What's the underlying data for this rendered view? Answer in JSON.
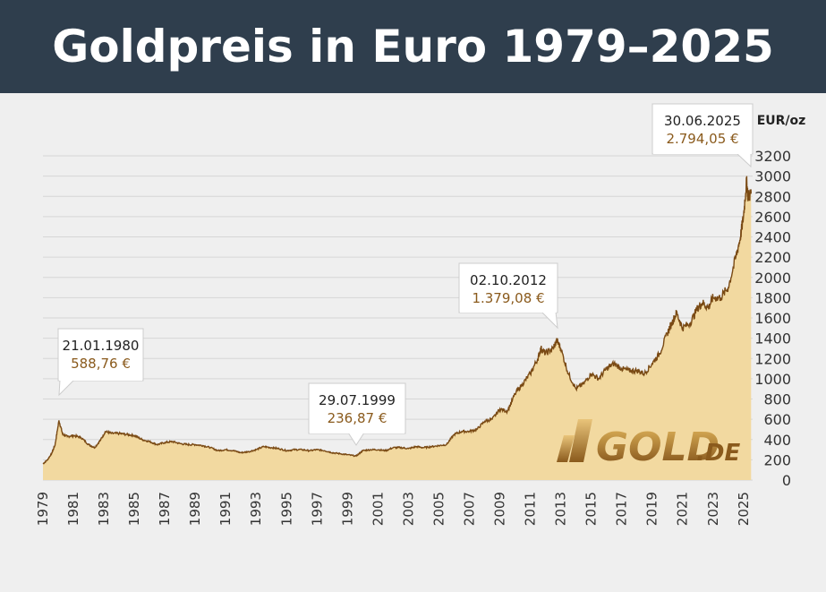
{
  "header": {
    "title": "Goldpreis in Euro 1979–2025"
  },
  "logo": {
    "name": "GOLD",
    "suffix": ".DE"
  },
  "chart_data": {
    "type": "area",
    "title": "Goldpreis in Euro 1979–2025",
    "ylabel": "EUR/oz",
    "xlabel": "",
    "ylim": [
      0,
      3200
    ],
    "xlim": [
      1979,
      2025.6
    ],
    "y_ticks": [
      0,
      200,
      400,
      600,
      800,
      1000,
      1200,
      1400,
      1600,
      1800,
      2000,
      2200,
      2400,
      2600,
      2800,
      3000,
      3200
    ],
    "x_ticks": [
      1979,
      1981,
      1983,
      1985,
      1987,
      1989,
      1991,
      1993,
      1995,
      1997,
      1999,
      2001,
      2003,
      2005,
      2007,
      2009,
      2011,
      2013,
      2015,
      2017,
      2019,
      2021,
      2023,
      2025
    ],
    "grid": true,
    "fill_color": "#f2d9a0",
    "line_color": "#7a4a14",
    "series": [
      {
        "name": "",
        "x": [
          1979.0,
          1979.3,
          1979.6,
          1979.8,
          1980.05,
          1980.3,
          1980.6,
          1981.0,
          1981.5,
          1982.0,
          1982.4,
          1982.8,
          1983.1,
          1983.5,
          1984.0,
          1984.5,
          1985.0,
          1985.5,
          1986.0,
          1986.5,
          1987.0,
          1987.5,
          1988.0,
          1988.5,
          1989.0,
          1989.5,
          1990.0,
          1990.5,
          1991.0,
          1991.5,
          1992.0,
          1992.5,
          1993.0,
          1993.5,
          1994.0,
          1994.5,
          1995.0,
          1995.5,
          1996.0,
          1996.5,
          1997.0,
          1997.5,
          1998.0,
          1998.5,
          1999.0,
          1999.57,
          2000.0,
          2000.5,
          2001.0,
          2001.5,
          2002.0,
          2002.5,
          2003.0,
          2003.5,
          2004.0,
          2004.5,
          2005.0,
          2005.5,
          2006.0,
          2006.5,
          2007.0,
          2007.5,
          2008.0,
          2008.5,
          2009.0,
          2009.5,
          2010.0,
          2010.5,
          2011.0,
          2011.5,
          2011.7,
          2012.0,
          2012.5,
          2012.75,
          2013.0,
          2013.5,
          2014.0,
          2014.5,
          2015.0,
          2015.5,
          2016.0,
          2016.5,
          2017.0,
          2017.5,
          2018.0,
          2018.5,
          2019.0,
          2019.5,
          2020.0,
          2020.3,
          2020.6,
          2021.0,
          2021.5,
          2022.0,
          2022.3,
          2022.7,
          2023.0,
          2023.5,
          2024.0,
          2024.5,
          2024.8,
          2025.0,
          2025.2,
          2025.3,
          2025.5
        ],
        "values": [
          160,
          200,
          270,
          350,
          588.76,
          450,
          430,
          440,
          420,
          350,
          320,
          400,
          480,
          460,
          460,
          450,
          440,
          400,
          380,
          350,
          370,
          380,
          360,
          350,
          350,
          340,
          320,
          290,
          300,
          290,
          270,
          280,
          300,
          330,
          320,
          310,
          290,
          300,
          300,
          290,
          300,
          290,
          270,
          260,
          250,
          236.87,
          290,
          300,
          300,
          290,
          320,
          320,
          310,
          330,
          320,
          330,
          340,
          350,
          450,
          480,
          480,
          500,
          580,
          600,
          700,
          680,
          850,
          950,
          1050,
          1200,
          1300,
          1250,
          1300,
          1379.08,
          1300,
          1050,
          900,
          950,
          1050,
          1000,
          1100,
          1150,
          1100,
          1080,
          1080,
          1050,
          1150,
          1250,
          1450,
          1550,
          1650,
          1500,
          1550,
          1700,
          1750,
          1700,
          1800,
          1800,
          1900,
          2200,
          2400,
          2600,
          2950,
          2794.05,
          2830
        ]
      }
    ],
    "annotations": [
      {
        "date": "21.01.1980",
        "value": "588,76 €"
      },
      {
        "date": "29.07.1999",
        "value": "236,87 €"
      },
      {
        "date": "02.10.2012",
        "value": "1.379,08 €"
      },
      {
        "date": "30.06.2025",
        "value": "2.794,05 €"
      }
    ]
  }
}
